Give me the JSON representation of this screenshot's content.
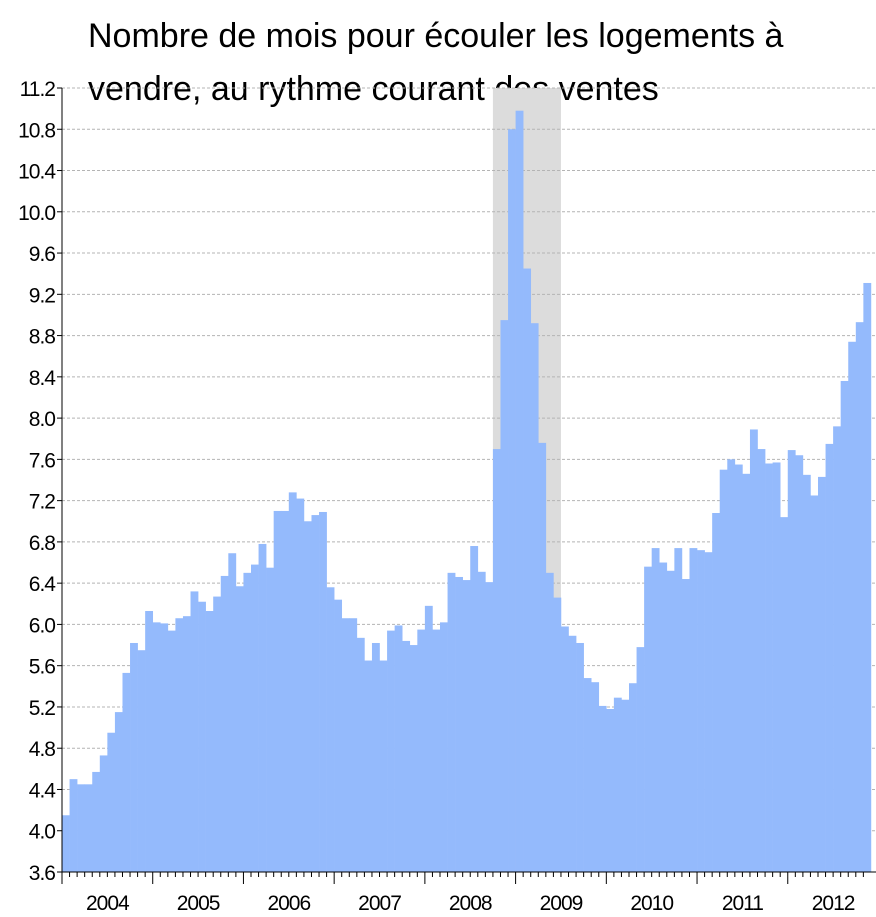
{
  "chart_data": {
    "type": "bar",
    "title": [
      "Nombre de mois pour écouler les logements à",
      "vendre, au rythme courant des ventes"
    ],
    "categories": [
      null,
      null,
      null,
      null,
      null,
      null,
      "2004",
      null,
      null,
      null,
      null,
      null,
      null,
      null,
      null,
      null,
      null,
      null,
      "2005",
      null,
      null,
      null,
      null,
      null,
      null,
      null,
      null,
      null,
      null,
      null,
      "2006",
      null,
      null,
      null,
      null,
      null,
      null,
      null,
      null,
      null,
      null,
      null,
      "2007",
      null,
      null,
      null,
      null,
      null,
      null,
      null,
      null,
      null,
      null,
      null,
      "2008",
      null,
      null,
      null,
      null,
      null,
      null,
      null,
      null,
      null,
      null,
      null,
      "2009",
      null,
      null,
      null,
      null,
      null,
      null,
      null,
      null,
      null,
      null,
      null,
      "2010",
      null,
      null,
      null,
      null,
      null,
      null,
      null,
      null,
      null,
      null,
      null,
      "2011",
      null,
      null,
      null,
      null,
      null,
      null,
      null,
      null,
      null,
      null,
      null,
      "2012",
      null,
      null,
      null,
      null
    ],
    "values": [
      4.15,
      4.5,
      4.45,
      4.45,
      4.57,
      4.73,
      4.95,
      5.15,
      5.53,
      5.82,
      5.75,
      6.13,
      6.02,
      6.01,
      5.94,
      6.06,
      6.08,
      6.32,
      6.22,
      6.13,
      6.27,
      6.47,
      6.69,
      6.37,
      6.5,
      6.58,
      6.78,
      6.55,
      7.1,
      7.1,
      7.28,
      7.22,
      7.0,
      7.06,
      7.09,
      6.36,
      6.24,
      6.06,
      6.06,
      5.87,
      5.65,
      5.82,
      5.65,
      5.94,
      5.99,
      5.84,
      5.8,
      5.95,
      6.18,
      5.95,
      6.02,
      6.5,
      6.46,
      6.43,
      6.76,
      6.51,
      6.41,
      7.7,
      8.95,
      10.8,
      10.98,
      9.45,
      8.92,
      7.76,
      6.5,
      6.26,
      5.98,
      5.89,
      5.82,
      5.48,
      5.44,
      5.21,
      5.18,
      5.29,
      5.27,
      5.43,
      5.78,
      6.56,
      6.74,
      6.6,
      6.52,
      6.74,
      6.44,
      6.74,
      6.72,
      6.7,
      7.08,
      7.5,
      7.6,
      7.55,
      7.46,
      7.89,
      7.7,
      7.56,
      7.57,
      7.04,
      7.69,
      7.64,
      7.45,
      7.25,
      7.43,
      7.75,
      7.92,
      8.36,
      8.74,
      8.93,
      9.31
    ],
    "color": "#94bafc",
    "shaded_band": {
      "start": 57,
      "end": 65,
      "color": "#dcdcdc"
    },
    "ylim": [
      3.6,
      11.2
    ],
    "yticks": [
      3.6,
      {
        "value": 4.0,
        "label": "4.0"
      },
      4.4,
      4.8,
      5.2,
      5.6,
      {
        "value": 6.0,
        "label": "6.0"
      },
      6.4,
      6.8,
      7.2,
      7.6,
      {
        "value": 8.0,
        "label": "8.0"
      },
      8.4,
      8.8,
      9.2,
      9.6,
      {
        "value": 10.0,
        "label": "10.0"
      },
      10.4,
      10.8,
      11.2
    ],
    "grid": true
  }
}
